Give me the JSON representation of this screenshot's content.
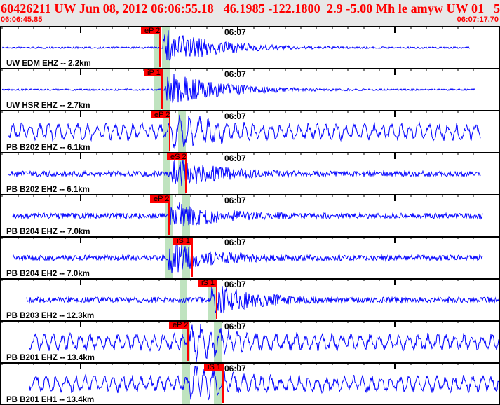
{
  "header": {
    "title": "60426211 UW Jun 08, 2012 06:06:55.18   46.1985 -122.1800  2.9 -5.00 Mh le amyw UW 01   5",
    "start_time": "06:06:45.85",
    "end_time": "06:07:17.70"
  },
  "colors": {
    "trace": "#0000ff",
    "pick": "#ff0000",
    "window": "#bfe3bf",
    "header_text": "#ff0000",
    "header_bg": "#e8e8e8"
  },
  "minute_label": "06:07",
  "channels": [
    {
      "label": "UW EDM EHZ -- 2.2km",
      "pick": "eP 2",
      "noise": "low"
    },
    {
      "label": "UW HSR EHZ -- 2.7km",
      "pick": "iP 1",
      "noise": "low"
    },
    {
      "label": "PB B202 EHZ -- 6.1km",
      "pick": "eP 2",
      "noise": "high"
    },
    {
      "label": "PB B202 EH2 -- 6.1km",
      "pick": "eS 2",
      "noise": "medium"
    },
    {
      "label": "PB B204 EHZ -- 7.0km",
      "pick": "eP 2",
      "noise": "medium"
    },
    {
      "label": "PB B204 EH2 -- 7.0km",
      "pick": "iS 1",
      "noise": "medium"
    },
    {
      "label": "PB B203 EH2 -- 12.3km",
      "pick": "iS 1",
      "noise": "medium"
    },
    {
      "label": "PB B201 EHZ -- 13.4km",
      "pick": "eP 2",
      "noise": "high"
    },
    {
      "label": "PB B201 EH1 -- 13.4km",
      "pick": "iS 1",
      "noise": "high"
    }
  ]
}
